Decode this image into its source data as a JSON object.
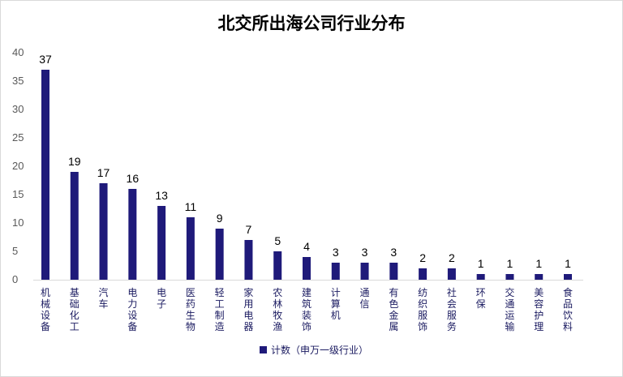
{
  "chart_data": {
    "type": "bar",
    "title": "北交所出海公司行业分布",
    "xlabel": "",
    "ylabel": "",
    "ylim": [
      0,
      40
    ],
    "yticks": [
      0,
      5,
      10,
      15,
      20,
      25,
      30,
      35,
      40
    ],
    "grid": false,
    "legend_position": "bottom",
    "categories": [
      "机械设备",
      "基础化工",
      "汽车",
      "电力设备",
      "电子",
      "医药生物",
      "轻工制造",
      "家用电器",
      "农林牧渔",
      "建筑装饰",
      "计算机",
      "通信",
      "有色金属",
      "纺织服饰",
      "社会服务",
      "环保",
      "交通运输",
      "美容护理",
      "食品饮料"
    ],
    "series": [
      {
        "name": "计数（申万一级行业）",
        "color": "#1f1a7a",
        "values": [
          37,
          19,
          17,
          16,
          13,
          11,
          9,
          7,
          5,
          4,
          3,
          3,
          3,
          2,
          2,
          1,
          1,
          1,
          1
        ]
      }
    ]
  }
}
